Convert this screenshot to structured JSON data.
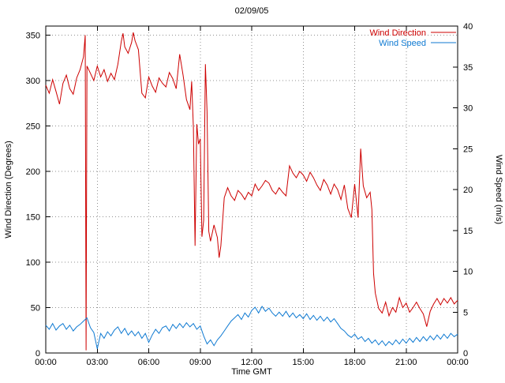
{
  "chart_data": {
    "type": "line",
    "title": "02/09/05",
    "xlabel": "Time GMT",
    "ylabel_left": "Wind Direction (Degrees)",
    "ylabel_right": "Wind Speed (m/s)",
    "x_range_hours": [
      0,
      24
    ],
    "x_ticks": [
      {
        "h": 0,
        "label": "00:00"
      },
      {
        "h": 3,
        "label": "03:00"
      },
      {
        "h": 6,
        "label": "06:00"
      },
      {
        "h": 9,
        "label": "09:00"
      },
      {
        "h": 12,
        "label": "12:00"
      },
      {
        "h": 15,
        "label": "15:00"
      },
      {
        "h": 18,
        "label": "18:00"
      },
      {
        "h": 21,
        "label": "21:00"
      },
      {
        "h": 24,
        "label": "00:00"
      }
    ],
    "y_left": {
      "range": [
        0,
        360
      ],
      "ticks": [
        0,
        50,
        100,
        150,
        200,
        250,
        300,
        350
      ]
    },
    "y_right": {
      "range": [
        0,
        40
      ],
      "ticks": [
        0,
        5,
        10,
        15,
        20,
        25,
        30,
        35,
        40
      ]
    },
    "grid": true,
    "legend": {
      "position": "top-right"
    },
    "colors": {
      "wind_direction": "#cd0000",
      "wind_speed": "#0f7ad2",
      "grid": "#909090",
      "border": "#000000",
      "text": "#000000",
      "background": "#ffffff"
    },
    "series": [
      {
        "name": "Wind Direction",
        "axis": "left",
        "color": "#cd0000",
        "points": [
          [
            0.0,
            295
          ],
          [
            0.2,
            286
          ],
          [
            0.4,
            301
          ],
          [
            0.6,
            288
          ],
          [
            0.8,
            274
          ],
          [
            1.0,
            297
          ],
          [
            1.2,
            306
          ],
          [
            1.4,
            291
          ],
          [
            1.6,
            285
          ],
          [
            1.8,
            303
          ],
          [
            2.0,
            312
          ],
          [
            2.2,
            326
          ],
          [
            2.3,
            350
          ],
          [
            2.35,
            3
          ],
          [
            2.4,
            316
          ],
          [
            2.6,
            308
          ],
          [
            2.8,
            300
          ],
          [
            3.0,
            316
          ],
          [
            3.2,
            304
          ],
          [
            3.4,
            312
          ],
          [
            3.6,
            299
          ],
          [
            3.8,
            308
          ],
          [
            4.0,
            301
          ],
          [
            4.2,
            318
          ],
          [
            4.4,
            343
          ],
          [
            4.5,
            352
          ],
          [
            4.6,
            337
          ],
          [
            4.8,
            330
          ],
          [
            5.0,
            342
          ],
          [
            5.1,
            353
          ],
          [
            5.2,
            344
          ],
          [
            5.4,
            334
          ],
          [
            5.6,
            286
          ],
          [
            5.8,
            281
          ],
          [
            6.0,
            304
          ],
          [
            6.2,
            294
          ],
          [
            6.4,
            287
          ],
          [
            6.6,
            303
          ],
          [
            6.8,
            297
          ],
          [
            7.0,
            293
          ],
          [
            7.2,
            309
          ],
          [
            7.4,
            302
          ],
          [
            7.6,
            291
          ],
          [
            7.8,
            329
          ],
          [
            8.0,
            306
          ],
          [
            8.2,
            279
          ],
          [
            8.4,
            268
          ],
          [
            8.5,
            299
          ],
          [
            8.6,
            248
          ],
          [
            8.7,
            118
          ],
          [
            8.8,
            252
          ],
          [
            8.9,
            230
          ],
          [
            9.0,
            236
          ],
          [
            9.1,
            128
          ],
          [
            9.2,
            146
          ],
          [
            9.3,
            318
          ],
          [
            9.4,
            266
          ],
          [
            9.5,
            134
          ],
          [
            9.6,
            123
          ],
          [
            9.8,
            141
          ],
          [
            10.0,
            127
          ],
          [
            10.1,
            105
          ],
          [
            10.2,
            118
          ],
          [
            10.4,
            171
          ],
          [
            10.6,
            182
          ],
          [
            10.8,
            173
          ],
          [
            11.0,
            168
          ],
          [
            11.2,
            179
          ],
          [
            11.4,
            175
          ],
          [
            11.6,
            169
          ],
          [
            11.8,
            177
          ],
          [
            12.0,
            173
          ],
          [
            12.2,
            186
          ],
          [
            12.4,
            179
          ],
          [
            12.6,
            184
          ],
          [
            12.8,
            190
          ],
          [
            13.0,
            187
          ],
          [
            13.2,
            179
          ],
          [
            13.4,
            175
          ],
          [
            13.6,
            182
          ],
          [
            13.8,
            177
          ],
          [
            14.0,
            173
          ],
          [
            14.2,
            206
          ],
          [
            14.4,
            198
          ],
          [
            14.6,
            193
          ],
          [
            14.8,
            200
          ],
          [
            15.0,
            196
          ],
          [
            15.2,
            189
          ],
          [
            15.4,
            199
          ],
          [
            15.6,
            193
          ],
          [
            15.8,
            185
          ],
          [
            16.0,
            179
          ],
          [
            16.2,
            191
          ],
          [
            16.4,
            185
          ],
          [
            16.6,
            175
          ],
          [
            16.8,
            186
          ],
          [
            17.0,
            180
          ],
          [
            17.2,
            169
          ],
          [
            17.4,
            185
          ],
          [
            17.6,
            159
          ],
          [
            17.8,
            149
          ],
          [
            18.0,
            186
          ],
          [
            18.2,
            149
          ],
          [
            18.35,
            225
          ],
          [
            18.5,
            184
          ],
          [
            18.7,
            171
          ],
          [
            18.9,
            177
          ],
          [
            19.0,
            158
          ],
          [
            19.1,
            88
          ],
          [
            19.2,
            66
          ],
          [
            19.4,
            49
          ],
          [
            19.6,
            44
          ],
          [
            19.8,
            56
          ],
          [
            20.0,
            41
          ],
          [
            20.2,
            50
          ],
          [
            20.4,
            45
          ],
          [
            20.6,
            61
          ],
          [
            20.8,
            50
          ],
          [
            21.0,
            55
          ],
          [
            21.2,
            45
          ],
          [
            21.4,
            50
          ],
          [
            21.6,
            56
          ],
          [
            21.8,
            49
          ],
          [
            22.0,
            43
          ],
          [
            22.2,
            29
          ],
          [
            22.4,
            46
          ],
          [
            22.6,
            54
          ],
          [
            22.8,
            60
          ],
          [
            23.0,
            53
          ],
          [
            23.2,
            60
          ],
          [
            23.4,
            55
          ],
          [
            23.6,
            61
          ],
          [
            23.8,
            54
          ],
          [
            24.0,
            58
          ]
        ]
      },
      {
        "name": "Wind Speed",
        "axis": "right",
        "color": "#0f7ad2",
        "points": [
          [
            0.0,
            3.4
          ],
          [
            0.2,
            2.9
          ],
          [
            0.4,
            3.6
          ],
          [
            0.6,
            2.8
          ],
          [
            0.8,
            3.3
          ],
          [
            1.0,
            3.6
          ],
          [
            1.2,
            2.9
          ],
          [
            1.4,
            3.4
          ],
          [
            1.6,
            2.7
          ],
          [
            1.8,
            3.2
          ],
          [
            2.0,
            3.5
          ],
          [
            2.2,
            3.9
          ],
          [
            2.4,
            4.3
          ],
          [
            2.6,
            3.1
          ],
          [
            2.8,
            2.5
          ],
          [
            3.0,
            0.5
          ],
          [
            3.2,
            2.4
          ],
          [
            3.4,
            1.8
          ],
          [
            3.6,
            2.6
          ],
          [
            3.8,
            2.1
          ],
          [
            4.0,
            2.8
          ],
          [
            4.2,
            3.2
          ],
          [
            4.4,
            2.4
          ],
          [
            4.6,
            3.0
          ],
          [
            4.8,
            2.2
          ],
          [
            5.0,
            2.7
          ],
          [
            5.2,
            2.1
          ],
          [
            5.4,
            2.6
          ],
          [
            5.6,
            1.8
          ],
          [
            5.8,
            2.4
          ],
          [
            6.0,
            1.3
          ],
          [
            6.2,
            2.2
          ],
          [
            6.4,
            2.9
          ],
          [
            6.6,
            2.4
          ],
          [
            6.8,
            3.1
          ],
          [
            7.0,
            3.3
          ],
          [
            7.2,
            2.7
          ],
          [
            7.4,
            3.5
          ],
          [
            7.6,
            3.0
          ],
          [
            7.8,
            3.6
          ],
          [
            8.0,
            3.1
          ],
          [
            8.2,
            3.7
          ],
          [
            8.4,
            3.2
          ],
          [
            8.6,
            3.6
          ],
          [
            8.8,
            2.9
          ],
          [
            9.0,
            3.3
          ],
          [
            9.2,
            2.1
          ],
          [
            9.4,
            1.1
          ],
          [
            9.6,
            1.6
          ],
          [
            9.8,
            0.9
          ],
          [
            10.0,
            1.6
          ],
          [
            10.2,
            2.1
          ],
          [
            10.4,
            2.7
          ],
          [
            10.6,
            3.3
          ],
          [
            10.8,
            3.9
          ],
          [
            11.0,
            4.3
          ],
          [
            11.2,
            4.7
          ],
          [
            11.4,
            4.1
          ],
          [
            11.6,
            4.9
          ],
          [
            11.8,
            4.4
          ],
          [
            12.0,
            5.2
          ],
          [
            12.2,
            5.6
          ],
          [
            12.4,
            4.9
          ],
          [
            12.6,
            5.7
          ],
          [
            12.8,
            5.1
          ],
          [
            13.0,
            5.5
          ],
          [
            13.2,
            4.9
          ],
          [
            13.4,
            4.5
          ],
          [
            13.6,
            5.0
          ],
          [
            13.8,
            4.5
          ],
          [
            14.0,
            5.1
          ],
          [
            14.2,
            4.4
          ],
          [
            14.4,
            4.9
          ],
          [
            14.6,
            4.3
          ],
          [
            14.8,
            4.7
          ],
          [
            15.0,
            4.2
          ],
          [
            15.2,
            4.8
          ],
          [
            15.4,
            4.1
          ],
          [
            15.6,
            4.6
          ],
          [
            15.8,
            4.0
          ],
          [
            16.0,
            4.5
          ],
          [
            16.2,
            3.9
          ],
          [
            16.4,
            4.4
          ],
          [
            16.6,
            3.8
          ],
          [
            16.8,
            4.2
          ],
          [
            17.0,
            3.6
          ],
          [
            17.2,
            3.0
          ],
          [
            17.4,
            2.7
          ],
          [
            17.6,
            2.2
          ],
          [
            17.8,
            1.9
          ],
          [
            18.0,
            2.3
          ],
          [
            18.2,
            1.7
          ],
          [
            18.4,
            2.0
          ],
          [
            18.6,
            1.4
          ],
          [
            18.8,
            1.8
          ],
          [
            19.0,
            1.2
          ],
          [
            19.2,
            1.6
          ],
          [
            19.4,
            1.0
          ],
          [
            19.6,
            1.5
          ],
          [
            19.8,
            0.9
          ],
          [
            20.0,
            1.4
          ],
          [
            20.2,
            1.0
          ],
          [
            20.4,
            1.6
          ],
          [
            20.6,
            1.1
          ],
          [
            20.8,
            1.7
          ],
          [
            21.0,
            1.2
          ],
          [
            21.2,
            1.8
          ],
          [
            21.4,
            1.3
          ],
          [
            21.6,
            1.9
          ],
          [
            21.8,
            1.4
          ],
          [
            22.0,
            2.0
          ],
          [
            22.2,
            1.5
          ],
          [
            22.4,
            2.1
          ],
          [
            22.6,
            1.6
          ],
          [
            22.8,
            2.2
          ],
          [
            23.0,
            1.7
          ],
          [
            23.2,
            2.3
          ],
          [
            23.4,
            1.8
          ],
          [
            23.6,
            2.4
          ],
          [
            23.8,
            2.0
          ],
          [
            24.0,
            2.3
          ]
        ]
      }
    ]
  }
}
